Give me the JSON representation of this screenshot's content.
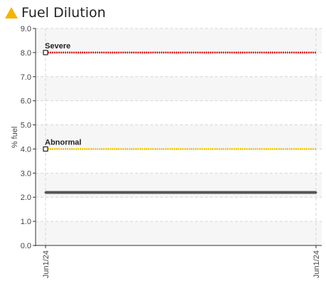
{
  "header": {
    "title": "Fuel Dilution",
    "icon": "warning-triangle-icon",
    "icon_color": "#f5b400"
  },
  "chart_data": {
    "type": "line",
    "title": "Fuel Dilution",
    "xlabel": "",
    "ylabel": "% fuel",
    "ylim": [
      0,
      9
    ],
    "yticks": [
      "0.0",
      "1.0",
      "2.0",
      "3.0",
      "4.0",
      "5.0",
      "6.0",
      "7.0",
      "8.0",
      "9.0"
    ],
    "x": [
      "Jun1/24",
      "Jun1/24"
    ],
    "grid": true,
    "legend": "none",
    "series": [
      {
        "values": [
          2.2,
          2.2
        ],
        "color": "#555555"
      }
    ],
    "thresholds": [
      {
        "label": "Severe",
        "value": 8.0,
        "color": "#e8141c"
      },
      {
        "label": "Abnormal",
        "value": 4.0,
        "color": "#f0c800"
      }
    ]
  }
}
